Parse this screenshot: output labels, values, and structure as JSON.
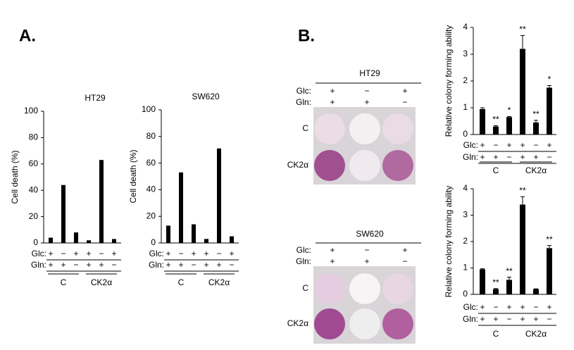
{
  "panels": [
    {
      "label": "A."
    },
    {
      "label": "B."
    }
  ],
  "plates": [
    {
      "title": "HT29",
      "row_labels": [
        "Glc:",
        "Gln:"
      ],
      "glc": [
        "+",
        "−",
        "+"
      ],
      "gln": [
        "+",
        "+",
        "−"
      ],
      "rows": [
        "C",
        "CK2α"
      ]
    },
    {
      "title": "SW620",
      "row_labels": [
        "Glc:",
        "Gln:"
      ],
      "glc": [
        "+",
        "−",
        "+"
      ],
      "gln": [
        "+",
        "+",
        "−"
      ],
      "rows": [
        "C",
        "CK2α"
      ]
    }
  ],
  "chart_data": [
    {
      "type": "bar",
      "title": "HT29",
      "y_label": "Cell death (%)",
      "color": "#000000",
      "categories": [
        null,
        null,
        null,
        null,
        null,
        null
      ],
      "values": [
        4,
        44,
        8,
        2,
        63,
        3
      ],
      "row_labels": [
        "Glc:",
        "Gln:"
      ],
      "glc": [
        "+",
        "−",
        "+",
        "+",
        "−",
        "+"
      ],
      "gln": [
        "+",
        "+",
        "−",
        "+",
        "+",
        "−"
      ],
      "groups": [
        "C",
        "CK2α"
      ],
      "ylim": [
        0,
        100
      ],
      "yticks": [
        0,
        20,
        40,
        60,
        80,
        100
      ]
    },
    {
      "type": "bar",
      "title": "SW620",
      "y_label": "Cell death (%)",
      "color": "#000000",
      "categories": [
        null,
        null,
        null,
        null,
        null,
        null
      ],
      "values": [
        13,
        53,
        14,
        3,
        71,
        5
      ],
      "row_labels": [
        "Glc:",
        "Gln:"
      ],
      "glc": [
        "+",
        "−",
        "+",
        "+",
        "−",
        "+"
      ],
      "gln": [
        "+",
        "+",
        "−",
        "+",
        "+",
        "−"
      ],
      "groups": [
        "C",
        "CK2α"
      ],
      "ylim": [
        0,
        100
      ],
      "yticks": [
        0,
        20,
        40,
        60,
        80,
        100
      ]
    },
    {
      "type": "bar",
      "y_label": "Relative colony forming ability",
      "color": "#000000",
      "categories": [
        null,
        null,
        null,
        null,
        null,
        null
      ],
      "values": [
        0.95,
        0.3,
        0.65,
        3.2,
        0.45,
        1.75
      ],
      "errors": [
        0.05,
        0.03,
        0.02,
        0.5,
        0.08,
        0.08
      ],
      "annotations": [
        null,
        "**",
        "*",
        "**",
        "**",
        "*"
      ],
      "row_labels": [
        "Glc:",
        "Gln:"
      ],
      "glc": [
        "+",
        "−",
        "+",
        "+",
        "−",
        "+"
      ],
      "gln": [
        "+",
        "+",
        "−",
        "+",
        "+",
        "−"
      ],
      "groups": [
        "C",
        "CK2α"
      ],
      "ylim": [
        0,
        4
      ],
      "yticks": [
        0,
        1,
        2,
        3,
        4
      ]
    },
    {
      "type": "bar",
      "y_label": "Relative colony forming ability",
      "color": "#000000",
      "categories": [
        null,
        null,
        null,
        null,
        null,
        null
      ],
      "values": [
        0.95,
        0.2,
        0.55,
        3.4,
        0.2,
        1.75
      ],
      "errors": [
        0.02,
        0.02,
        0.1,
        0.3,
        0.01,
        0.1
      ],
      "annotations": [
        null,
        "**",
        "**",
        "**",
        null,
        "**"
      ],
      "row_labels": [
        "Glc:",
        "Gln:"
      ],
      "glc": [
        "+",
        "−",
        "+",
        "+",
        "−",
        "+"
      ],
      "gln": [
        "+",
        "+",
        "−",
        "+",
        "+",
        "−"
      ],
      "groups": [
        "C",
        "CK2α"
      ],
      "ylim": [
        0,
        4
      ],
      "yticks": [
        0,
        1,
        2,
        3,
        4
      ]
    }
  ]
}
